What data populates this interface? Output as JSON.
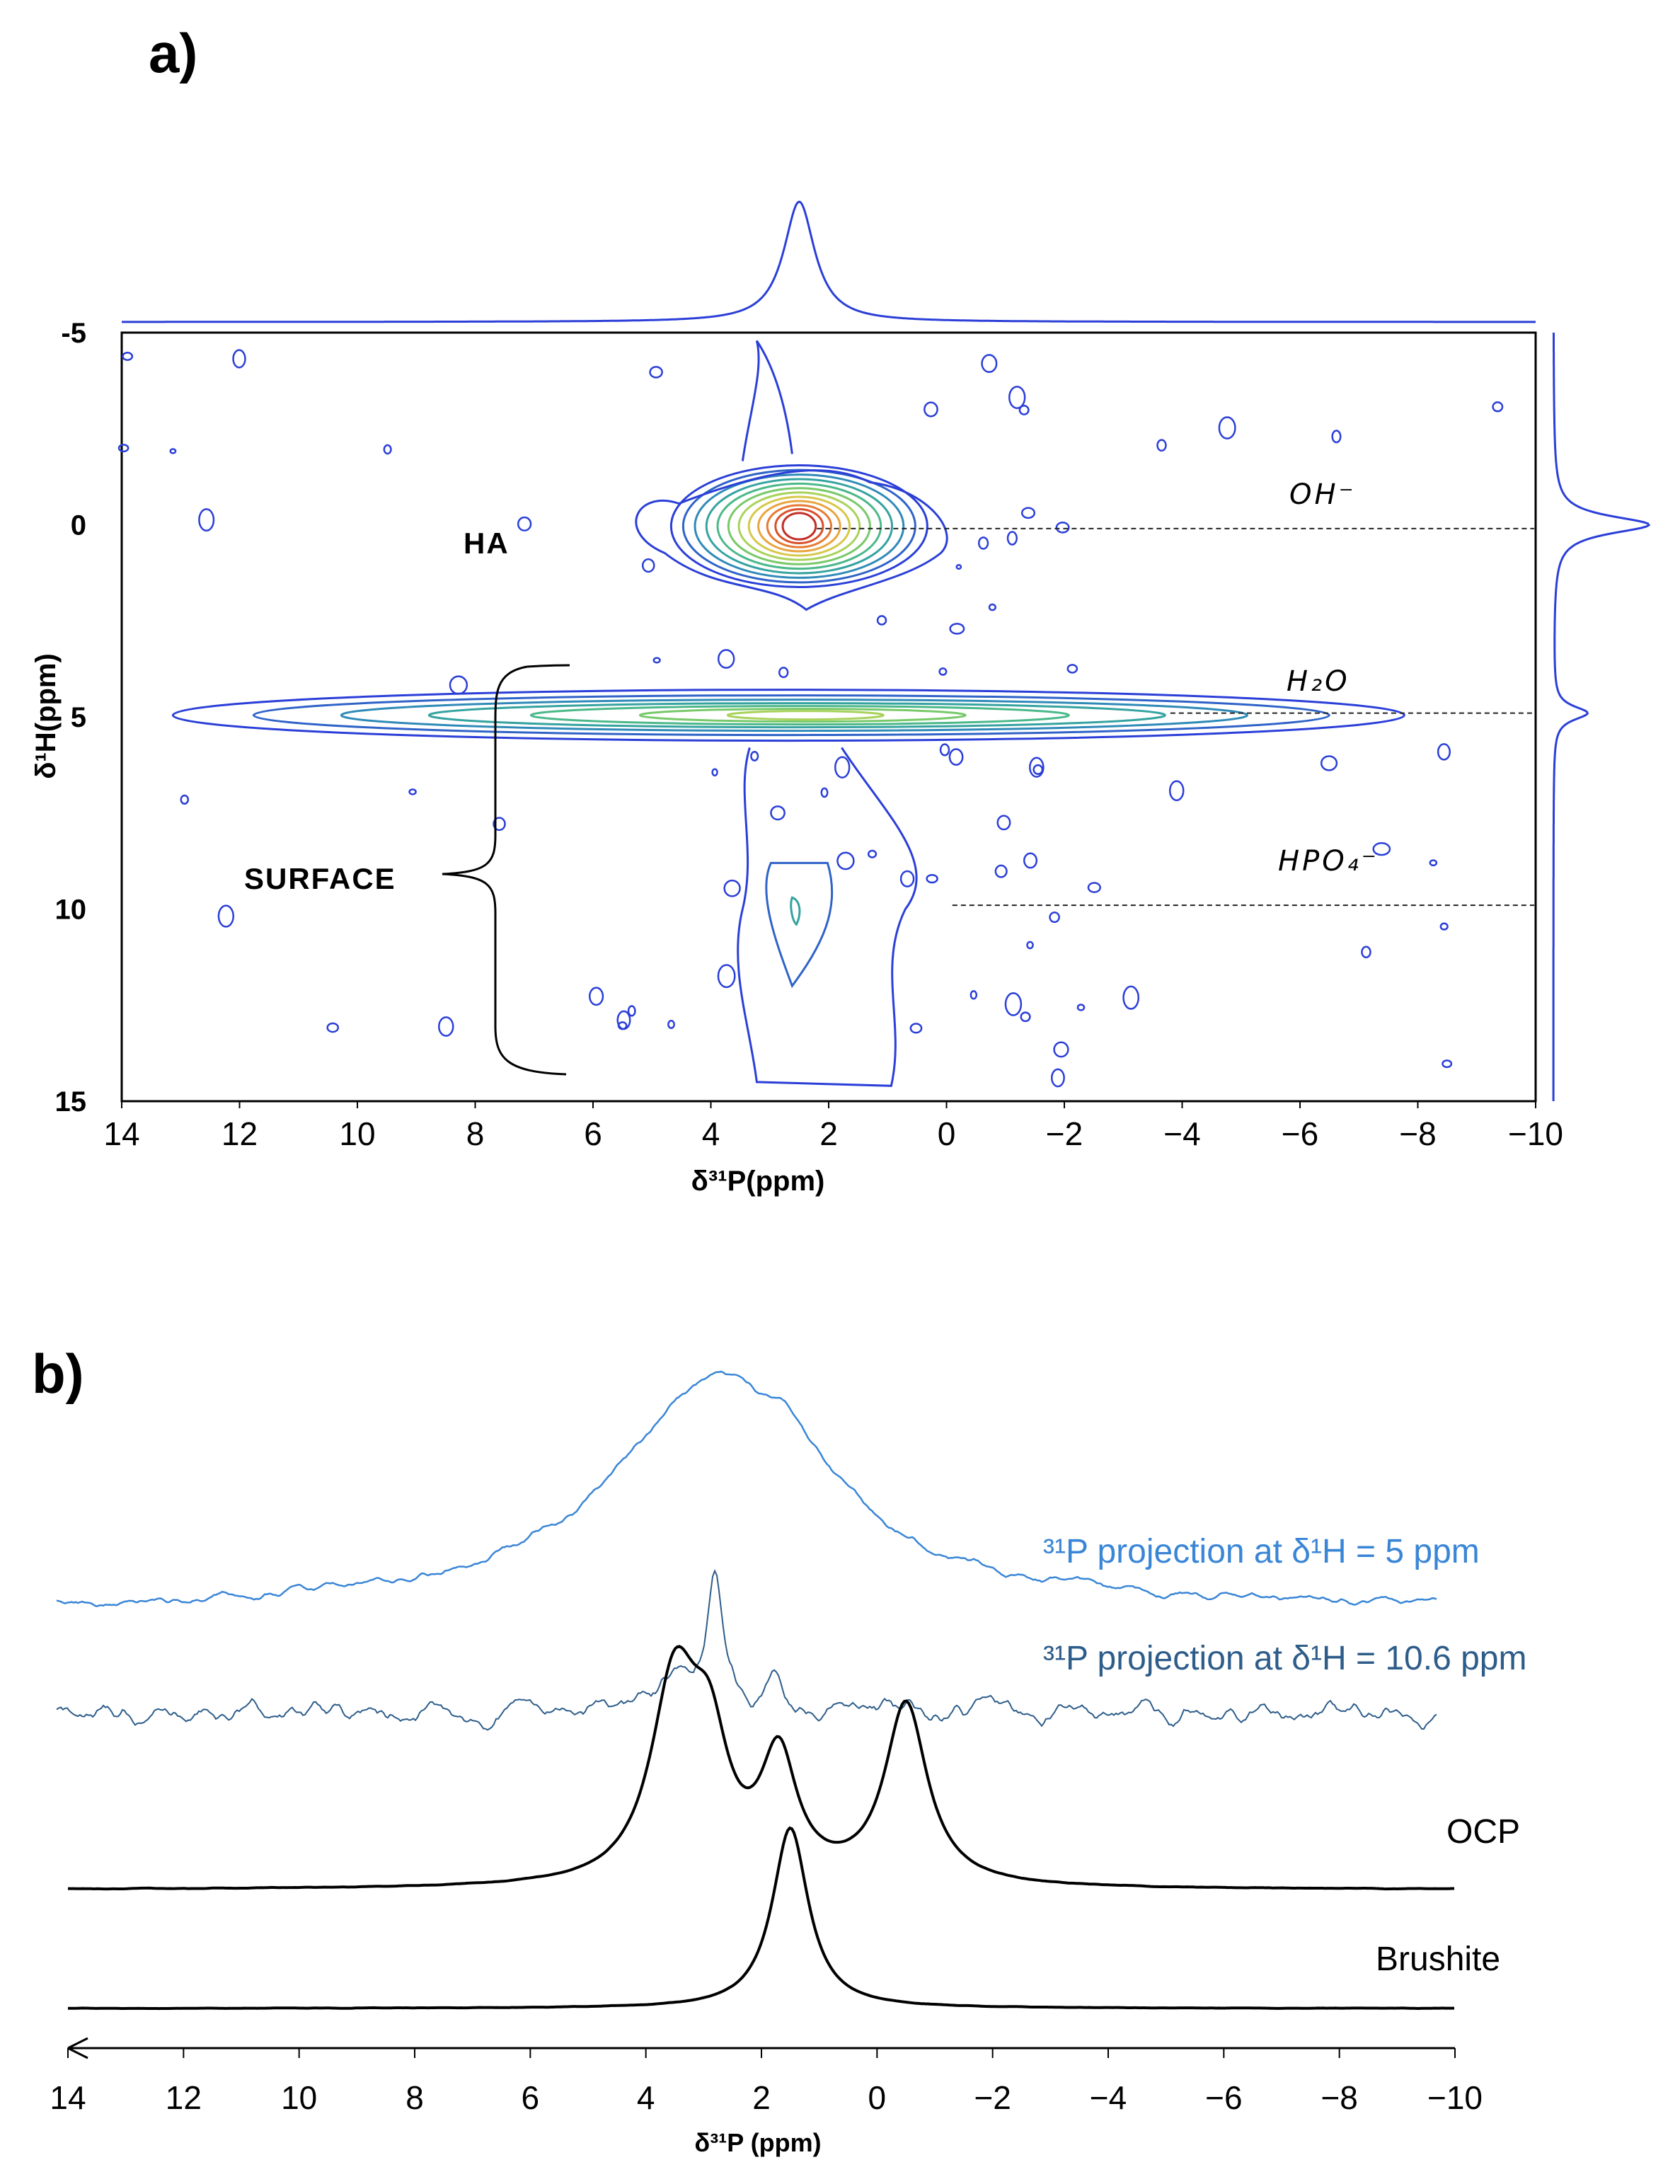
{
  "panel_a": {
    "label": "a)",
    "ylabel": "δ¹H(ppm)",
    "xlabel": "δ³¹P(ppm)",
    "annotations": {
      "ha": "HA",
      "surface": "SURFACE"
    },
    "species": [
      {
        "name": "OH⁻",
        "h_ppm": 0
      },
      {
        "name": "H₂O",
        "h_ppm": 4.9
      },
      {
        "name": "HPO₄⁻",
        "h_ppm": 9.9
      }
    ]
  },
  "panel_b": {
    "label": "b)",
    "xlabel": "δ³¹P (ppm)",
    "traces": [
      {
        "name": "³¹P projection at δ¹H = 5 ppm",
        "color": "#3a86d6"
      },
      {
        "name": "³¹P projection at δ¹H = 10.6 ppm",
        "color": "#2e5d8a"
      },
      {
        "name": "OCP",
        "color": "#000000"
      },
      {
        "name": "Brushite",
        "color": "#000000"
      }
    ]
  },
  "chart_data": [
    {
      "type": "heatmap",
      "title": "",
      "xlabel": "δ³¹P(ppm)",
      "ylabel": "δ¹H(ppm)",
      "xlim": [
        14,
        -10
      ],
      "ylim": [
        -5,
        15
      ],
      "x_ticks": [
        14,
        12,
        10,
        8,
        6,
        4,
        2,
        0,
        -2,
        -4,
        -6,
        -8,
        -10
      ],
      "y_ticks": [
        -5,
        0,
        5,
        10,
        15
      ],
      "peaks": [
        {
          "label": "OH⁻",
          "p_ppm": 2.5,
          "h_ppm": 0.0,
          "relative_intensity": 1.0
        },
        {
          "label": "H₂O",
          "p_ppm": 2.2,
          "h_ppm": 4.9,
          "relative_intensity": 0.45
        },
        {
          "label": "HPO₄⁻",
          "p_ppm": 2.5,
          "h_ppm": 9.9,
          "relative_intensity": 0.15
        }
      ],
      "projections": {
        "top_31P_peak_ppm": 2.5,
        "right_1H_peaks_ppm": [
          0.0,
          4.9
        ]
      }
    },
    {
      "type": "line",
      "title": "",
      "xlabel": "δ³¹P (ppm)",
      "xlim": [
        14,
        -10
      ],
      "x_ticks": [
        14,
        12,
        10,
        8,
        6,
        4,
        2,
        0,
        -2,
        -4,
        -6,
        -8,
        -10
      ],
      "series": [
        {
          "name": "³¹P projection at δ¹H = 5 ppm",
          "peaks_ppm": [
            2.7,
            1.5
          ],
          "shape": "broad"
        },
        {
          "name": "³¹P projection at δ¹H = 10.6 ppm",
          "peaks_ppm": [
            2.8,
            1.8,
            1.1
          ],
          "shape": "noisy"
        },
        {
          "name": "OCP",
          "peaks_ppm": [
            3.5,
            3.1,
            1.7,
            -0.5
          ]
        },
        {
          "name": "Brushite",
          "peaks_ppm": [
            1.5
          ]
        }
      ]
    }
  ]
}
